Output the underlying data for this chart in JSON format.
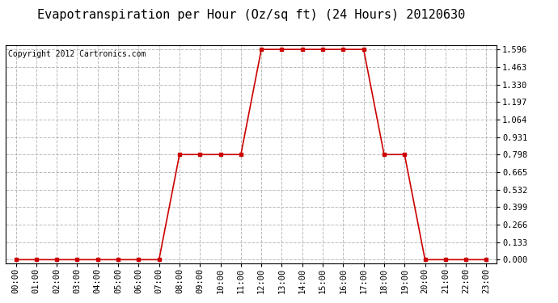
{
  "title": "Evapotranspiration per Hour (Oz/sq ft) (24 Hours) 20120630",
  "copyright_text": "Copyright 2012 Cartronics.com",
  "x_labels": [
    "00:00",
    "01:00",
    "02:00",
    "03:00",
    "04:00",
    "05:00",
    "06:00",
    "07:00",
    "08:00",
    "09:00",
    "10:00",
    "11:00",
    "12:00",
    "13:00",
    "14:00",
    "15:00",
    "16:00",
    "17:00",
    "18:00",
    "19:00",
    "20:00",
    "21:00",
    "22:00",
    "23:00"
  ],
  "y_values": [
    0.0,
    0.0,
    0.0,
    0.0,
    0.0,
    0.0,
    0.0,
    0.0,
    0.798,
    0.798,
    0.798,
    0.798,
    1.596,
    1.596,
    1.596,
    1.596,
    1.596,
    1.596,
    0.798,
    0.798,
    0.0,
    0.0,
    0.0,
    0.0
  ],
  "y_ticks": [
    0.0,
    0.133,
    0.266,
    0.399,
    0.532,
    0.665,
    0.798,
    0.931,
    1.064,
    1.197,
    1.33,
    1.463,
    1.596
  ],
  "y_max": 1.596,
  "line_color": "#cc0000",
  "marker": "s",
  "marker_size": 3,
  "bg_color": "#ffffff",
  "plot_bg_color": "#ffffff",
  "grid_color": "#bbbbbb",
  "grid_style": "--",
  "title_fontsize": 11,
  "copyright_fontsize": 7,
  "tick_fontsize": 7.5,
  "border_color": "#000000"
}
